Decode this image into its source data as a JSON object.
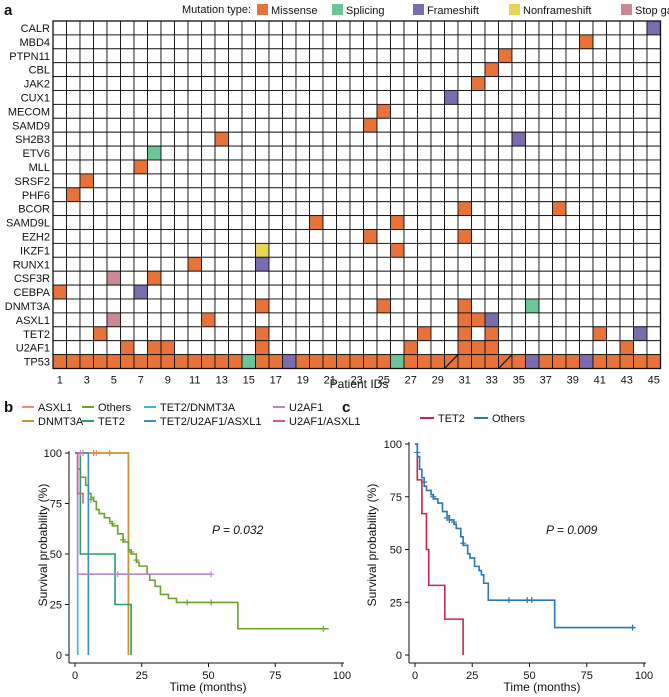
{
  "colors": {
    "Missense": "#E8733A",
    "Splicing": "#6CC598",
    "Frameshift": "#7B6CB0",
    "Nonframeshift": "#E6D55A",
    "Stop gained": "#C98A95",
    "empty": "#ffffff",
    "grid": "#111111",
    "km_asxl1": "#F08A6B",
    "km_dnmt3a": "#D4902B",
    "km_others": "#6FA22A",
    "km_tet2_green": "#2A9E64",
    "km_tet2_dnmt3a": "#3CB3E0",
    "km_tet2_u2af1_asxl1": "#3590C8",
    "km_u2af1": "#B38BCC",
    "km_u2af1_asxl1": "#D45C90",
    "c_tet2": "#C0294E",
    "c_others": "#2A77B4"
  },
  "panel_labels": {
    "a": "a",
    "b": "b",
    "c": "c"
  },
  "chart_data": [
    {
      "type": "heatmap",
      "panel": "a",
      "title": "Mutation type:",
      "legend": [
        "Missense",
        "Splicing",
        "Frameshift",
        "Nonframeshift",
        "Stop gained"
      ],
      "xlabel": "Patient IDs",
      "x_tick_labels": [
        "1",
        "3",
        "5",
        "7",
        "9",
        "11",
        "13",
        "15",
        "17",
        "19",
        "21",
        "23",
        "25",
        "27",
        "29",
        "31",
        "33",
        "35",
        "37",
        "39",
        "41",
        "43",
        "45"
      ],
      "n_patients": 45,
      "genes": [
        "CALR",
        "MBD4",
        "PTPN11",
        "CBL",
        "JAK2",
        "CUX1",
        "MECOM",
        "SAMD9",
        "SH2B3",
        "ETV6",
        "MLL",
        "SRSF2",
        "PHF6",
        "BCOR",
        "SAMD9L",
        "EZH2",
        "IKZF1",
        "RUNX1",
        "CSF3R",
        "CEBPA",
        "DNMT3A",
        "ASXL1",
        "TET2",
        "U2AF1",
        "TP53"
      ],
      "cells": [
        {
          "gene": "CALR",
          "patient": 45,
          "type": "Frameshift"
        },
        {
          "gene": "MBD4",
          "patient": 40,
          "type": "Missense"
        },
        {
          "gene": "PTPN11",
          "patient": 34,
          "type": "Missense"
        },
        {
          "gene": "CBL",
          "patient": 33,
          "type": "Missense"
        },
        {
          "gene": "JAK2",
          "patient": 32,
          "type": "Missense"
        },
        {
          "gene": "CUX1",
          "patient": 30,
          "type": "Frameshift"
        },
        {
          "gene": "MECOM",
          "patient": 25,
          "type": "Missense"
        },
        {
          "gene": "SAMD9",
          "patient": 24,
          "type": "Missense"
        },
        {
          "gene": "SH2B3",
          "patient": 13,
          "type": "Missense"
        },
        {
          "gene": "SH2B3",
          "patient": 35,
          "type": "Frameshift"
        },
        {
          "gene": "ETV6",
          "patient": 8,
          "type": "Splicing"
        },
        {
          "gene": "MLL",
          "patient": 7,
          "type": "Missense"
        },
        {
          "gene": "SRSF2",
          "patient": 3,
          "type": "Missense"
        },
        {
          "gene": "PHF6",
          "patient": 2,
          "type": "Missense"
        },
        {
          "gene": "BCOR",
          "patient": 31,
          "type": "Missense"
        },
        {
          "gene": "BCOR",
          "patient": 38,
          "type": "Missense"
        },
        {
          "gene": "SAMD9L",
          "patient": 20,
          "type": "Missense"
        },
        {
          "gene": "SAMD9L",
          "patient": 26,
          "type": "Missense"
        },
        {
          "gene": "EZH2",
          "patient": 24,
          "type": "Missense"
        },
        {
          "gene": "EZH2",
          "patient": 31,
          "type": "Missense"
        },
        {
          "gene": "IKZF1",
          "patient": 16,
          "type": "Nonframeshift"
        },
        {
          "gene": "IKZF1",
          "patient": 26,
          "type": "Missense"
        },
        {
          "gene": "RUNX1",
          "patient": 11,
          "type": "Missense"
        },
        {
          "gene": "RUNX1",
          "patient": 16,
          "type": "Frameshift"
        },
        {
          "gene": "CSF3R",
          "patient": 5,
          "type": "Stop gained"
        },
        {
          "gene": "CSF3R",
          "patient": 8,
          "type": "Missense"
        },
        {
          "gene": "CEBPA",
          "patient": 1,
          "type": "Missense"
        },
        {
          "gene": "CEBPA",
          "patient": 7,
          "type": "Frameshift"
        },
        {
          "gene": "DNMT3A",
          "patient": 16,
          "type": "Missense"
        },
        {
          "gene": "DNMT3A",
          "patient": 25,
          "type": "Missense"
        },
        {
          "gene": "DNMT3A",
          "patient": 31,
          "type": "Missense"
        },
        {
          "gene": "DNMT3A",
          "patient": 36,
          "type": "Splicing"
        },
        {
          "gene": "ASXL1",
          "patient": 5,
          "type": "Stop gained"
        },
        {
          "gene": "ASXL1",
          "patient": 12,
          "type": "Missense"
        },
        {
          "gene": "ASXL1",
          "patient": 31,
          "type": "Missense"
        },
        {
          "gene": "ASXL1",
          "patient": 32,
          "type": "Missense"
        },
        {
          "gene": "ASXL1",
          "patient": 33,
          "type": "Frameshift"
        },
        {
          "gene": "TET2",
          "patient": 4,
          "type": "Missense"
        },
        {
          "gene": "TET2",
          "patient": 16,
          "type": "Missense"
        },
        {
          "gene": "TET2",
          "patient": 28,
          "type": "Missense"
        },
        {
          "gene": "TET2",
          "patient": 31,
          "type": "Missense"
        },
        {
          "gene": "TET2",
          "patient": 33,
          "type": "Missense"
        },
        {
          "gene": "TET2",
          "patient": 41,
          "type": "Missense"
        },
        {
          "gene": "TET2",
          "patient": 44,
          "type": "Frameshift"
        },
        {
          "gene": "U2AF1",
          "patient": 6,
          "type": "Missense"
        },
        {
          "gene": "U2AF1",
          "patient": 8,
          "type": "Missense"
        },
        {
          "gene": "U2AF1",
          "patient": 9,
          "type": "Missense"
        },
        {
          "gene": "U2AF1",
          "patient": 16,
          "type": "Missense"
        },
        {
          "gene": "U2AF1",
          "patient": 27,
          "type": "Missense"
        },
        {
          "gene": "U2AF1",
          "patient": 31,
          "type": "Missense"
        },
        {
          "gene": "U2AF1",
          "patient": 32,
          "type": "Missense"
        },
        {
          "gene": "U2AF1",
          "patient": 33,
          "type": "Missense"
        },
        {
          "gene": "U2AF1",
          "patient": 43,
          "type": "Missense"
        }
      ],
      "tp53": {
        "default": "Missense",
        "overrides": [
          {
            "patient": 15,
            "type": "Splicing"
          },
          {
            "patient": 18,
            "type": "Frameshift"
          },
          {
            "patient": 26,
            "type": "Splicing"
          },
          {
            "patient": 36,
            "type": "Frameshift"
          },
          {
            "patient": 40,
            "type": "Frameshift"
          }
        ],
        "split_cells": [
          30,
          34
        ]
      }
    },
    {
      "type": "line",
      "subtype": "kaplan-meier",
      "panel": "b",
      "xlabel": "Time (months)",
      "ylabel": "Survival probability (%)",
      "xlim": [
        0,
        100
      ],
      "ylim": [
        0,
        100
      ],
      "x_ticks": [
        0,
        25,
        50,
        75,
        100
      ],
      "y_ticks": [
        0,
        25,
        50,
        75,
        100
      ],
      "annotation": "P = 0.032",
      "legend": [
        "ASXL1",
        "DNMT3A",
        "Others",
        "TET2",
        "TET2/DNMT3A",
        "TET2/U2AF1/ASXL1",
        "U2AF1",
        "U2AF1/ASXL1"
      ],
      "series": [
        {
          "name": "ASXL1",
          "color": "km_asxl1",
          "steps": [
            [
              0,
              100
            ],
            [
              20,
              100
            ],
            [
              20,
              0
            ]
          ],
          "censor": [
            [
              8,
              100
            ]
          ]
        },
        {
          "name": "DNMT3A",
          "color": "km_dnmt3a",
          "steps": [
            [
              0,
              100
            ],
            [
              20,
              100
            ],
            [
              20,
              0
            ]
          ],
          "censor": [
            [
              3,
              100
            ],
            [
              7,
              100
            ],
            [
              13,
              100
            ]
          ]
        },
        {
          "name": "Others",
          "color": "km_others",
          "steps": [
            [
              0,
              100
            ],
            [
              1,
              92
            ],
            [
              2,
              88
            ],
            [
              4,
              84
            ],
            [
              5,
              80
            ],
            [
              6,
              78
            ],
            [
              7,
              76
            ],
            [
              8,
              72
            ],
            [
              9,
              70
            ],
            [
              11,
              68
            ],
            [
              13,
              66
            ],
            [
              14,
              64
            ],
            [
              16,
              60
            ],
            [
              18,
              56
            ],
            [
              20,
              52
            ],
            [
              21,
              50
            ],
            [
              23,
              46
            ],
            [
              24,
              44
            ],
            [
              27,
              40
            ],
            [
              28,
              37
            ],
            [
              30,
              34
            ],
            [
              32,
              30
            ],
            [
              35,
              28
            ],
            [
              38,
              26
            ],
            [
              61,
              26
            ],
            [
              61,
              13
            ],
            [
              95,
              13
            ]
          ],
          "censor": [
            [
              6,
              77
            ],
            [
              14,
              65
            ],
            [
              18,
              57
            ],
            [
              21,
              51
            ],
            [
              23,
              47
            ],
            [
              42,
              26
            ],
            [
              51,
              26
            ],
            [
              93,
              13
            ]
          ]
        },
        {
          "name": "TET2",
          "color": "km_tet2_green",
          "steps": [
            [
              0,
              100
            ],
            [
              2,
              100
            ],
            [
              2,
              50
            ],
            [
              15,
              50
            ],
            [
              15,
              25
            ],
            [
              21,
              25
            ],
            [
              21,
              0
            ]
          ],
          "censor": []
        },
        {
          "name": "TET2/DNMT3A",
          "color": "km_tet2_dnmt3a",
          "steps": [
            [
              0,
              100
            ],
            [
              1,
              100
            ],
            [
              1,
              0
            ]
          ],
          "censor": []
        },
        {
          "name": "TET2/U2AF1/ASXL1",
          "color": "km_tet2_u2af1_asxl1",
          "steps": [
            [
              0,
              100
            ],
            [
              5,
              100
            ],
            [
              5,
              0
            ]
          ],
          "censor": []
        },
        {
          "name": "U2AF1",
          "color": "km_u2af1",
          "steps": [
            [
              0,
              100
            ],
            [
              1,
              100
            ],
            [
              1,
              40
            ],
            [
              51,
              40
            ]
          ],
          "censor": [
            [
              2,
              100
            ],
            [
              16,
              40
            ],
            [
              51,
              40
            ]
          ]
        },
        {
          "name": "U2AF1/ASXL1",
          "color": "km_u2af1_asxl1",
          "steps": [
            [
              0,
              100
            ],
            [
              1,
              100
            ],
            [
              1,
              80
            ],
            [
              3,
              80
            ],
            [
              3,
              75
            ]
          ],
          "censor": []
        }
      ]
    },
    {
      "type": "line",
      "subtype": "kaplan-meier",
      "panel": "c",
      "xlabel": "Time (months)",
      "ylabel": "Survival probability (%)",
      "xlim": [
        0,
        100
      ],
      "ylim": [
        0,
        100
      ],
      "x_ticks": [
        0,
        25,
        50,
        75,
        100
      ],
      "y_ticks": [
        0,
        25,
        50,
        75,
        100
      ],
      "annotation": "P = 0.009",
      "legend": [
        "TET2",
        "Others"
      ],
      "series": [
        {
          "name": "TET2",
          "color": "c_tet2",
          "steps": [
            [
              0,
              100
            ],
            [
              1,
              100
            ],
            [
              1,
              83
            ],
            [
              3,
              83
            ],
            [
              3,
              67
            ],
            [
              5,
              67
            ],
            [
              5,
              50
            ],
            [
              6,
              50
            ],
            [
              6,
              33
            ],
            [
              13,
              33
            ],
            [
              13,
              17
            ],
            [
              21,
              17
            ],
            [
              21,
              0
            ]
          ],
          "censor": []
        },
        {
          "name": "Others",
          "color": "c_others",
          "steps": [
            [
              0,
              100
            ],
            [
              1,
              94
            ],
            [
              2,
              88
            ],
            [
              3,
              84
            ],
            [
              4,
              80
            ],
            [
              5,
              78
            ],
            [
              7,
              76
            ],
            [
              8,
              74
            ],
            [
              10,
              72
            ],
            [
              12,
              68
            ],
            [
              14,
              66
            ],
            [
              15,
              64
            ],
            [
              17,
              62
            ],
            [
              18,
              60
            ],
            [
              20,
              56
            ],
            [
              21,
              52
            ],
            [
              23,
              48
            ],
            [
              24,
              46
            ],
            [
              26,
              42
            ],
            [
              28,
              40
            ],
            [
              29,
              38
            ],
            [
              30,
              34
            ],
            [
              32,
              26
            ],
            [
              61,
              26
            ],
            [
              61,
              13
            ],
            [
              96,
              13
            ]
          ],
          "censor": [
            [
              1,
              96
            ],
            [
              4,
              82
            ],
            [
              8,
              75
            ],
            [
              14,
              65
            ],
            [
              15,
              64
            ],
            [
              17,
              63
            ],
            [
              21,
              53
            ],
            [
              41,
              26
            ],
            [
              49,
              26
            ],
            [
              51,
              26
            ],
            [
              95,
              13
            ]
          ]
        }
      ]
    }
  ]
}
